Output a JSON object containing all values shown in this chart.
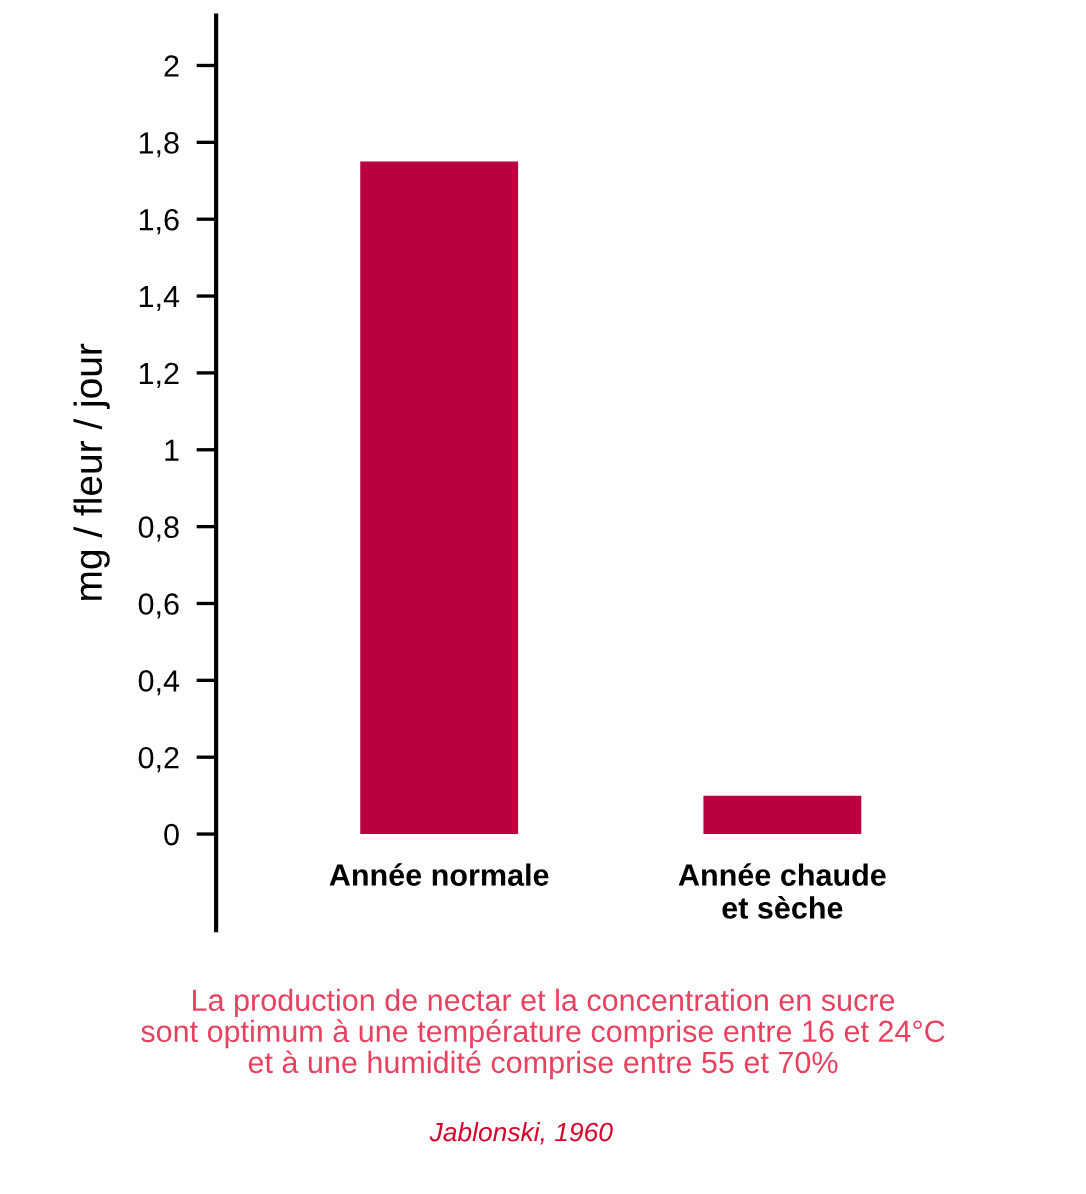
{
  "chart_data": {
    "type": "bar",
    "ylabel": "mg / fleur / jour",
    "categories": [
      "Année normale",
      "Année chaude\net sèche"
    ],
    "values": [
      1.75,
      0.1
    ],
    "color": "#bb0040",
    "ylim": [
      -0.25,
      2.13
    ],
    "yticks": [
      0,
      {
        "value": 0.2,
        "label": "0,2"
      },
      {
        "value": 0.4,
        "label": "0,4"
      },
      {
        "value": 0.6,
        "label": "0,6"
      },
      {
        "value": 0.8,
        "label": "0,8"
      },
      1,
      {
        "value": 1.2,
        "label": "1,2"
      },
      {
        "value": 1.4,
        "label": "1,4"
      },
      {
        "value": 1.6,
        "label": "1,6"
      },
      {
        "value": 1.8,
        "label": "1,8"
      },
      2
    ],
    "grid": false,
    "annotations": [
      "La production de nectar et la concentration en sucre\nsont optimum à une température comprise entre 16 et 24°C\net à une humidité comprise entre 55 et 70%",
      "Jablonski, 1960"
    ]
  }
}
